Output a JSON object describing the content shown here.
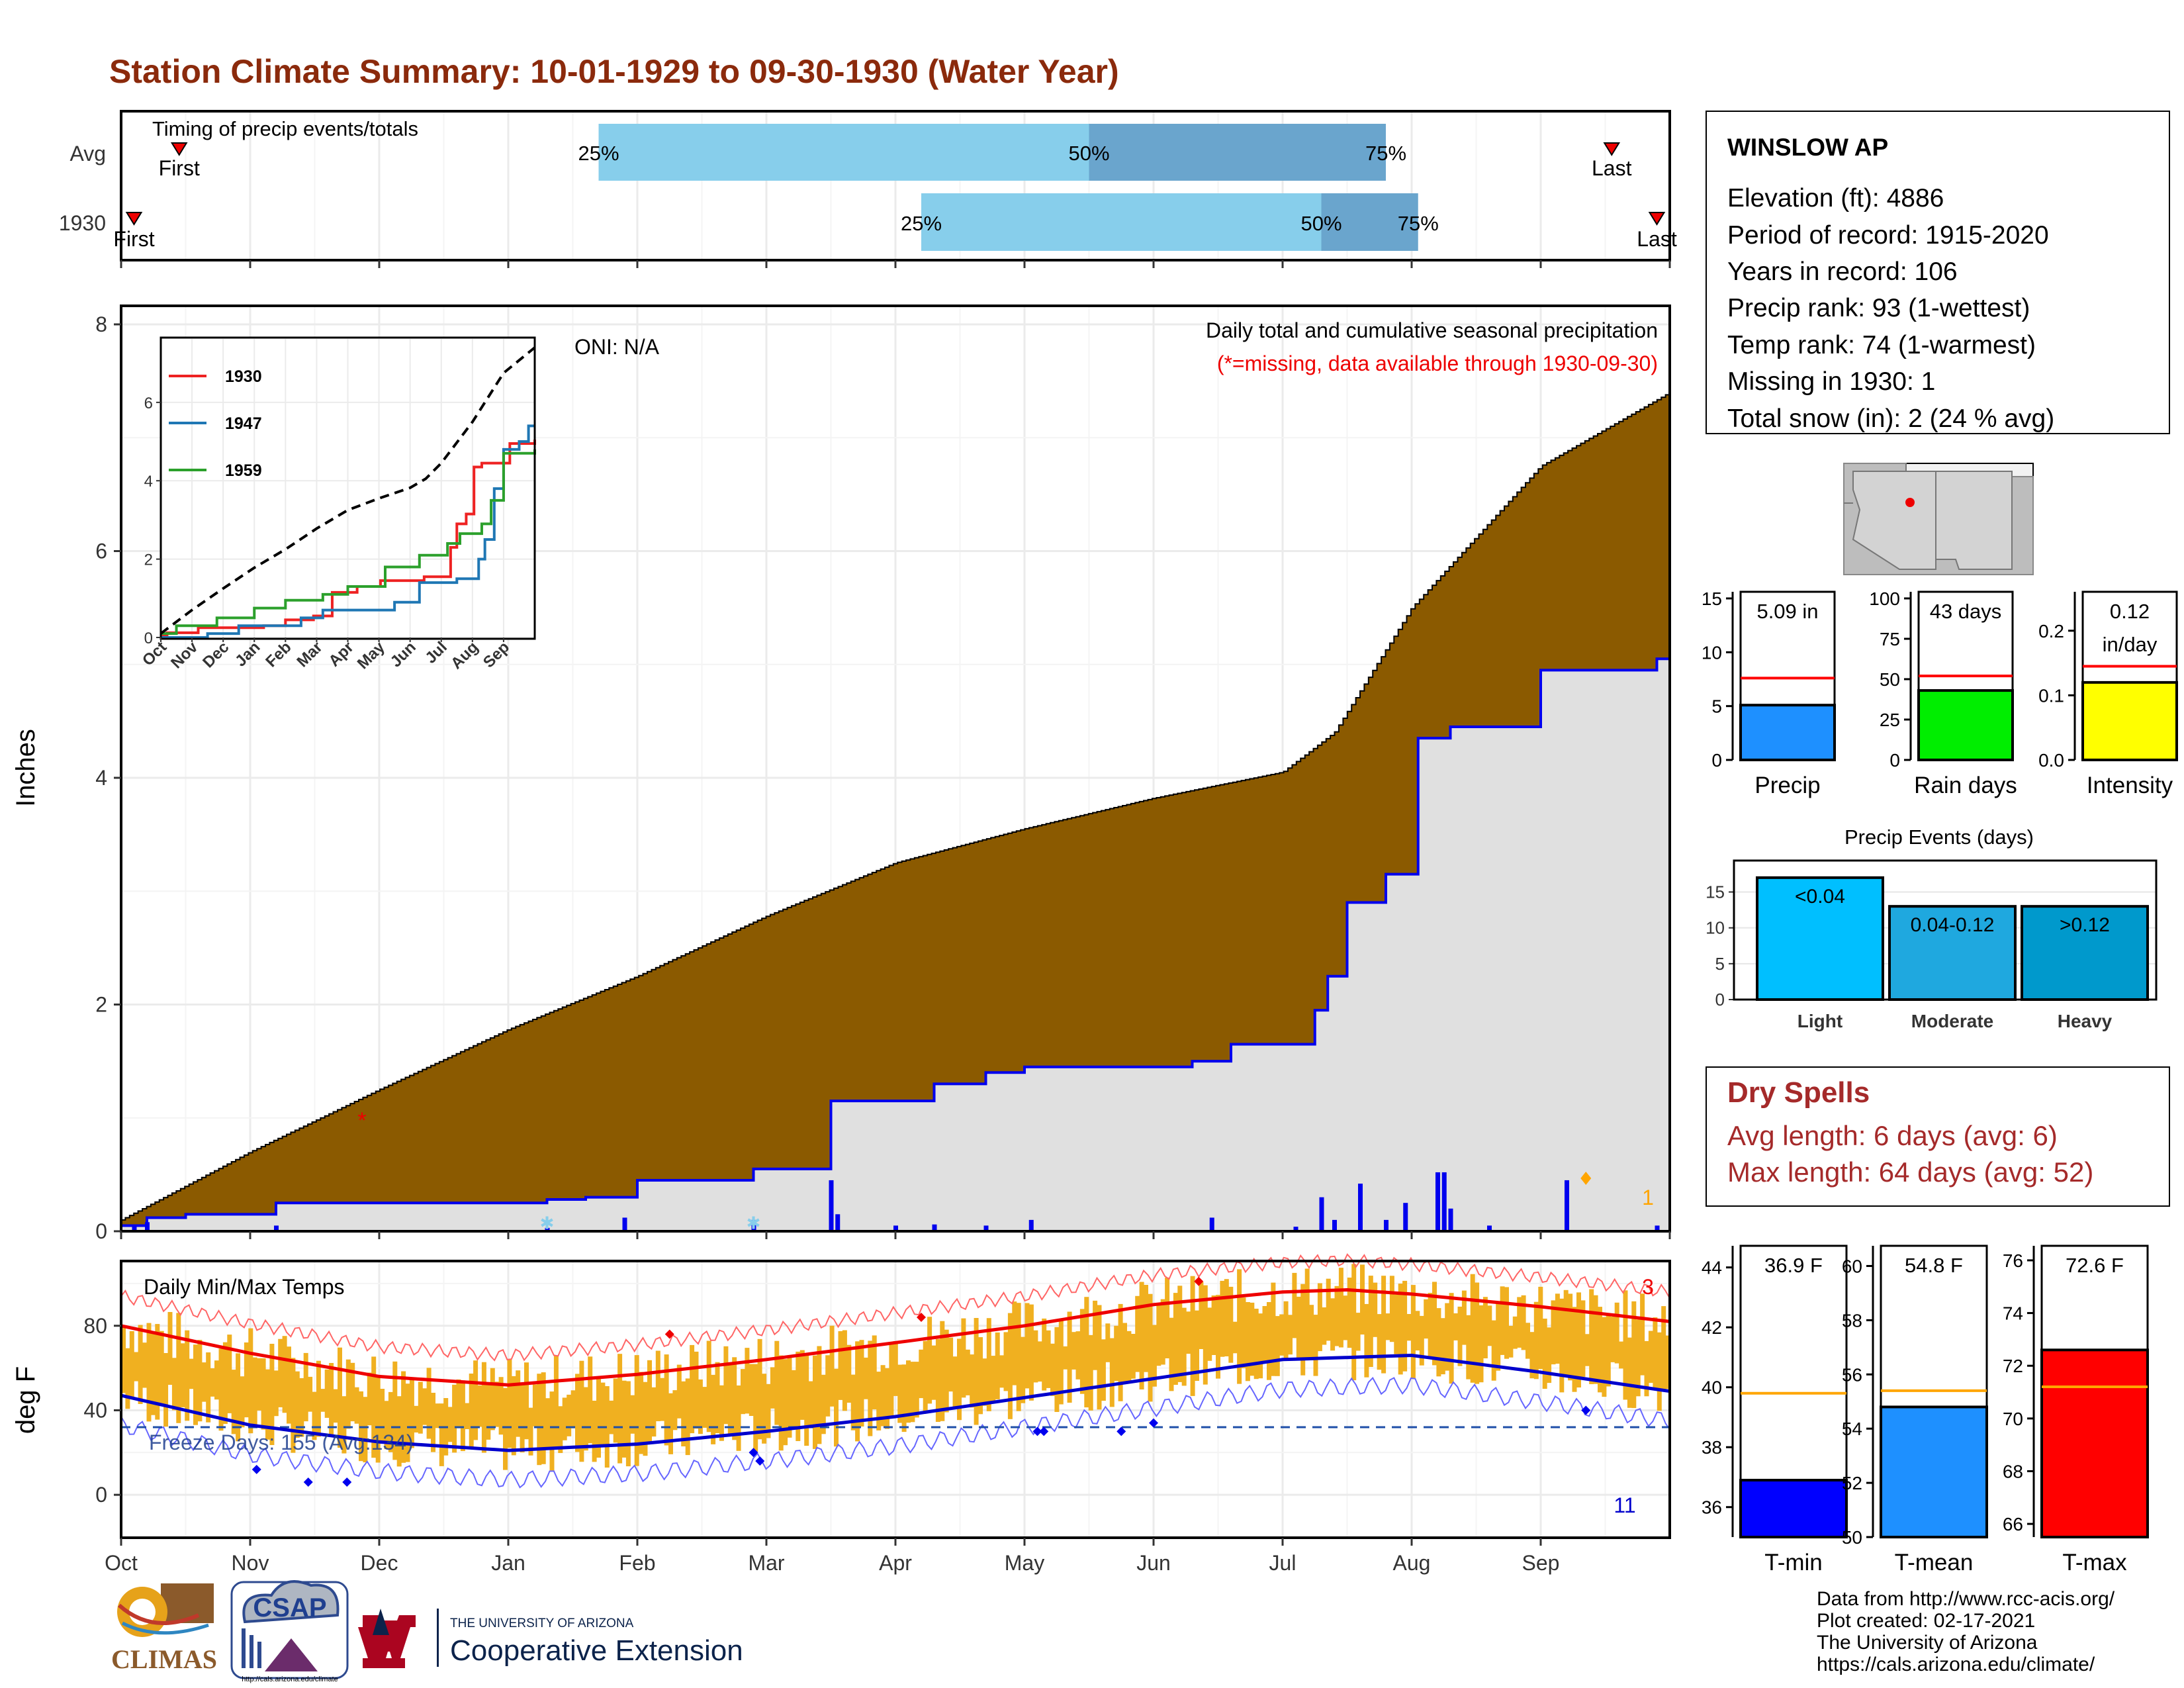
{
  "title": "Station Climate Summary: 10-01-1929 to 09-30-1930 (Water Year)",
  "colors": {
    "title": "#8B2A0C",
    "cum_avg": "#8B5A00",
    "cum_obs_fill": "#E0E0E0",
    "cum_obs_line": "#0000EE",
    "daily_bar": "#0000EE",
    "timing_light": "#87CEEB",
    "timing_dark": "#6AA5CD",
    "temp_bar": "#F0B020",
    "tmax_line": "#EE0000",
    "tmin_line": "#0000CC",
    "red_ref": "#FF0000",
    "orange_ref": "#FFA500"
  },
  "timing_panel": {
    "label": "Timing of precip events/totals",
    "rows": [
      "Avg",
      "1930"
    ],
    "avg": {
      "first_label": "First",
      "last_label": "Last",
      "first_month": 0.45,
      "last_month": 11.55,
      "p25": 3.7,
      "p50": 7.5,
      "p75": 9.8
    },
    "year": {
      "first_label": "First",
      "last_label": "Last",
      "first_month": 0.1,
      "last_month": 11.9,
      "p25": 6.2,
      "p50": 9.3,
      "p75": 10.05
    },
    "pct_labels": [
      "25%",
      "50%",
      "75%"
    ]
  },
  "precip_panel": {
    "ylabel": "Inches",
    "yticks": [
      "0",
      "2",
      "4",
      "6",
      "8"
    ],
    "ylim": [
      0,
      8.1
    ],
    "oni": "ONI: N/A",
    "caption": "Daily total and cumulative seasonal precipitation",
    "missing_note": "(*=missing, data available through 1930-09-30)",
    "missing_count": "1",
    "missing_marker": {
      "month": 2.0,
      "value": 0.98
    }
  },
  "months": [
    "Oct",
    "Nov",
    "Dec",
    "Jan",
    "Feb",
    "Mar",
    "Apr",
    "May",
    "Jun",
    "Jul",
    "Aug",
    "Sep"
  ],
  "chart_data": [
    {
      "type": "area",
      "name": "Cumulative seasonal precipitation",
      "x_unit": "month index from Oct 1",
      "avg_cumulative": {
        "x": [
          0,
          1,
          2,
          3,
          4,
          5,
          6,
          7,
          8,
          9,
          9.4,
          10,
          11,
          12
        ],
        "y": [
          0.1,
          0.7,
          1.25,
          1.78,
          2.25,
          2.78,
          3.25,
          3.55,
          3.82,
          4.05,
          4.4,
          5.5,
          6.75,
          7.4
        ]
      },
      "obs_cumulative_steps": [
        [
          0,
          0.05
        ],
        [
          0.2,
          0.12
        ],
        [
          0.5,
          0.15
        ],
        [
          1.2,
          0.25
        ],
        [
          3.3,
          0.28
        ],
        [
          3.6,
          0.3
        ],
        [
          4.0,
          0.45
        ],
        [
          4.9,
          0.55
        ],
        [
          5.5,
          1.15
        ],
        [
          6.3,
          1.3
        ],
        [
          6.7,
          1.4
        ],
        [
          7.0,
          1.45
        ],
        [
          8.3,
          1.5
        ],
        [
          8.6,
          1.65
        ],
        [
          9.25,
          1.95
        ],
        [
          9.35,
          2.25
        ],
        [
          9.5,
          2.9
        ],
        [
          9.8,
          3.15
        ],
        [
          10.05,
          4.35
        ],
        [
          10.3,
          4.45
        ],
        [
          11.0,
          4.95
        ],
        [
          11.9,
          5.05
        ]
      ],
      "daily_bars": [
        [
          0.1,
          0.05
        ],
        [
          0.2,
          0.08
        ],
        [
          1.2,
          0.05
        ],
        [
          3.3,
          0.03
        ],
        [
          3.9,
          0.12
        ],
        [
          4.9,
          0.1
        ],
        [
          5.5,
          0.45
        ],
        [
          5.55,
          0.15
        ],
        [
          6.0,
          0.05
        ],
        [
          6.3,
          0.06
        ],
        [
          6.7,
          0.05
        ],
        [
          7.05,
          0.1
        ],
        [
          8.45,
          0.12
        ],
        [
          9.1,
          0.04
        ],
        [
          9.3,
          0.3
        ],
        [
          9.4,
          0.1
        ],
        [
          9.6,
          0.42
        ],
        [
          9.8,
          0.1
        ],
        [
          9.95,
          0.25
        ],
        [
          10.2,
          0.52
        ],
        [
          10.25,
          0.52
        ],
        [
          10.3,
          0.2
        ],
        [
          10.6,
          0.05
        ],
        [
          11.2,
          0.45
        ],
        [
          11.9,
          0.05
        ]
      ],
      "snow_markers": [
        [
          3.3,
          0.08
        ],
        [
          4.9,
          0.08
        ]
      ],
      "ylim": [
        0,
        8.1
      ]
    },
    {
      "type": "line",
      "name": "Inset cumulative precip comparison",
      "legend": [
        "1930",
        "1947",
        "1959"
      ],
      "series_colors": [
        "#EE2222",
        "#1F77B4",
        "#2CA02C"
      ],
      "yticks": [
        "0",
        "2",
        "4",
        "6"
      ],
      "ylim": [
        0,
        7.4
      ],
      "avg": {
        "x": [
          0,
          1,
          2,
          3,
          4,
          5,
          6,
          7,
          8,
          8.5,
          9,
          10,
          11,
          12
        ],
        "y": [
          0.1,
          0.7,
          1.25,
          1.78,
          2.25,
          2.78,
          3.25,
          3.55,
          3.82,
          4.05,
          4.45,
          5.5,
          6.75,
          7.4
        ]
      },
      "series": [
        {
          "name": "1930",
          "x": [
            0,
            0.2,
            1.2,
            3.3,
            4.0,
            4.9,
            5.5,
            6.3,
            7.05,
            8.45,
            9.3,
            9.5,
            9.8,
            10.05,
            10.3,
            11.2,
            12
          ],
          "y": [
            0.05,
            0.12,
            0.25,
            0.3,
            0.45,
            0.55,
            1.15,
            1.3,
            1.45,
            1.55,
            2.3,
            2.9,
            3.15,
            4.35,
            4.45,
            4.95,
            5.05
          ]
        },
        {
          "name": "1947",
          "x": [
            0,
            1.5,
            2.5,
            4.5,
            5.2,
            7.5,
            8.3,
            9.5,
            10.2,
            10.4,
            10.7,
            11.0,
            11.5,
            11.8,
            12
          ],
          "y": [
            0.0,
            0.1,
            0.3,
            0.5,
            0.7,
            0.9,
            1.4,
            1.5,
            2.0,
            2.5,
            3.8,
            4.8,
            5.0,
            5.4,
            5.4
          ]
        },
        {
          "name": "1959",
          "x": [
            0,
            0.5,
            1.8,
            3.0,
            4.0,
            5.2,
            6.0,
            7.2,
            8.3,
            9.2,
            9.6,
            10.3,
            10.6,
            11.0,
            12
          ],
          "y": [
            0.1,
            0.3,
            0.5,
            0.75,
            0.95,
            1.1,
            1.3,
            1.8,
            2.1,
            2.4,
            2.65,
            2.9,
            3.5,
            4.7,
            4.8
          ]
        }
      ]
    },
    {
      "type": "bar",
      "name": "Daily min/max temps",
      "ylim": [
        -20,
        110
      ],
      "yticks": [
        "0",
        "40",
        "80"
      ],
      "normal_tmax": {
        "x": [
          0,
          1,
          2,
          3,
          4,
          5,
          6,
          7,
          8,
          9,
          9.5,
          10,
          11,
          12
        ],
        "y": [
          80,
          67,
          56,
          52,
          57,
          64,
          72,
          80,
          90,
          96,
          97,
          95,
          89,
          82
        ]
      },
      "normal_tmin": {
        "x": [
          0,
          1,
          2,
          3,
          4,
          5,
          6,
          7,
          8,
          9,
          10,
          11,
          12
        ],
        "y": [
          47,
          33,
          25,
          21,
          24,
          30,
          37,
          46,
          55,
          64,
          66,
          58,
          49
        ]
      },
      "freeze_line": 32,
      "freeze_label": "Freeze Days: 155 (Avg:134)",
      "panel_label": "Daily Min/Max Temps",
      "count_max": "3",
      "count_min": "11",
      "record_high_markers": [
        [
          4.25,
          76
        ],
        [
          6.2,
          84
        ],
        [
          8.35,
          101
        ]
      ],
      "record_low_markers": [
        [
          1.05,
          12
        ],
        [
          1.45,
          6
        ],
        [
          1.75,
          6
        ],
        [
          4.9,
          20
        ],
        [
          4.95,
          16
        ],
        [
          7.1,
          30
        ],
        [
          7.15,
          30
        ],
        [
          7.75,
          30
        ],
        [
          8.0,
          34
        ],
        [
          11.35,
          40
        ]
      ]
    },
    {
      "type": "bar",
      "name": "Precip summary",
      "categories": [
        "Precip",
        "Rain days",
        "Intensity"
      ],
      "values": [
        5.09,
        43,
        0.12
      ],
      "averages": [
        7.6,
        52,
        0.145
      ],
      "labels": [
        "5.09 in",
        "43 days",
        "0.12\nin/day"
      ],
      "ylims": [
        [
          0,
          15
        ],
        [
          0,
          100
        ],
        [
          0,
          0.25
        ]
      ],
      "yticks": [
        [
          "0",
          "5",
          "10",
          "15"
        ],
        [
          "0",
          "25",
          "50",
          "75",
          "100"
        ],
        [
          "0.0",
          "0.1",
          "0.2"
        ]
      ],
      "fills": [
        "#1E90FF",
        "#00EE00",
        "#FFFF00"
      ]
    },
    {
      "type": "bar",
      "name": "Precip Events (days)",
      "title": "Precip Events (days)",
      "categories": [
        "Light",
        "Moderate",
        "Heavy"
      ],
      "bar_labels": [
        "<0.04",
        "0.04-0.12",
        ">0.12"
      ],
      "values": [
        17,
        13,
        13
      ],
      "ylim": [
        0,
        18
      ],
      "yticks": [
        "0",
        "5",
        "10",
        "15"
      ],
      "fills": [
        "#00BFFF",
        "#1FA8DF",
        "#0099CC"
      ]
    },
    {
      "type": "bar",
      "name": "Temperature summary",
      "categories": [
        "T-min",
        "T-mean",
        "T-max"
      ],
      "values": [
        36.9,
        54.8,
        72.6
      ],
      "averages": [
        39.8,
        55.4,
        71.2
      ],
      "labels": [
        "36.9 F",
        "54.8 F",
        "72.6 F"
      ],
      "ylims": [
        [
          35,
          44.5
        ],
        [
          50,
          60.5
        ],
        [
          65.5,
          76.3
        ]
      ],
      "yticks": [
        [
          "36",
          "38",
          "40",
          "42",
          "44"
        ],
        [
          "50",
          "52",
          "54",
          "56",
          "58",
          "60"
        ],
        [
          "66",
          "68",
          "70",
          "72",
          "74",
          "76"
        ]
      ],
      "fills": [
        "#0000FF",
        "#1E90FF",
        "#FF0000"
      ]
    }
  ],
  "station": {
    "name": "WINSLOW AP",
    "lines": [
      "Elevation (ft): 4886",
      "Period of record: 1915-2020",
      "Years in record: 106",
      "Precip rank: 93 (1-wettest)",
      "Temp rank: 74 (1-warmest)",
      "Missing in 1930: 1",
      "Total snow (in): 2 (24 % avg)"
    ]
  },
  "dry_spells": {
    "title": "Dry Spells",
    "avg": "Avg length: 6 days (avg: 6)",
    "max": "Max length: 64 days (avg: 52)"
  },
  "footer": {
    "lines": [
      "Data from http://www.rcc-acis.org/",
      "Plot created: 02-17-2021",
      "The University of Arizona",
      "https://cals.arizona.edu/climate/"
    ],
    "logo_climas": "CLIMAS",
    "logo_csap": "CSAP",
    "logo_csap_url": "http://cals.arizona.edu/climate",
    "ua_small": "THE UNIVERSITY OF ARIZONA",
    "ua_big": "Cooperative Extension"
  }
}
